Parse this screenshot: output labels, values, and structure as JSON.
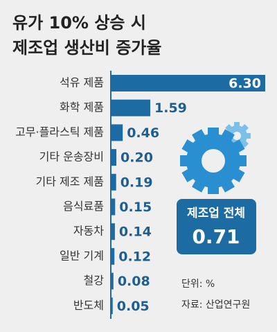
{
  "chart_data": {
    "type": "bar",
    "orientation": "horizontal",
    "title": [
      "유가 10% 상승 시",
      "제조업 생산비 증가율"
    ],
    "categories": [
      "석유 제품",
      "화학 제품",
      "고무·플라스틱 제품",
      "기타 운송장비",
      "기타 제조 제품",
      "음식료품",
      "자동차",
      "일반 기계",
      "철강",
      "반도체"
    ],
    "values": [
      6.3,
      1.59,
      0.46,
      0.2,
      0.19,
      0.15,
      0.14,
      0.12,
      0.08,
      0.05
    ],
    "value_labels": [
      "6.30",
      "1.59",
      "0.46",
      "0.20",
      "0.19",
      "0.15",
      "0.14",
      "0.12",
      "0.08",
      "0.05"
    ],
    "color": "#1c6ca3",
    "total_label": "제조업 전체",
    "total_value": 0.71,
    "unit_note": "단위: %",
    "source": "자료: 산업연구원"
  }
}
